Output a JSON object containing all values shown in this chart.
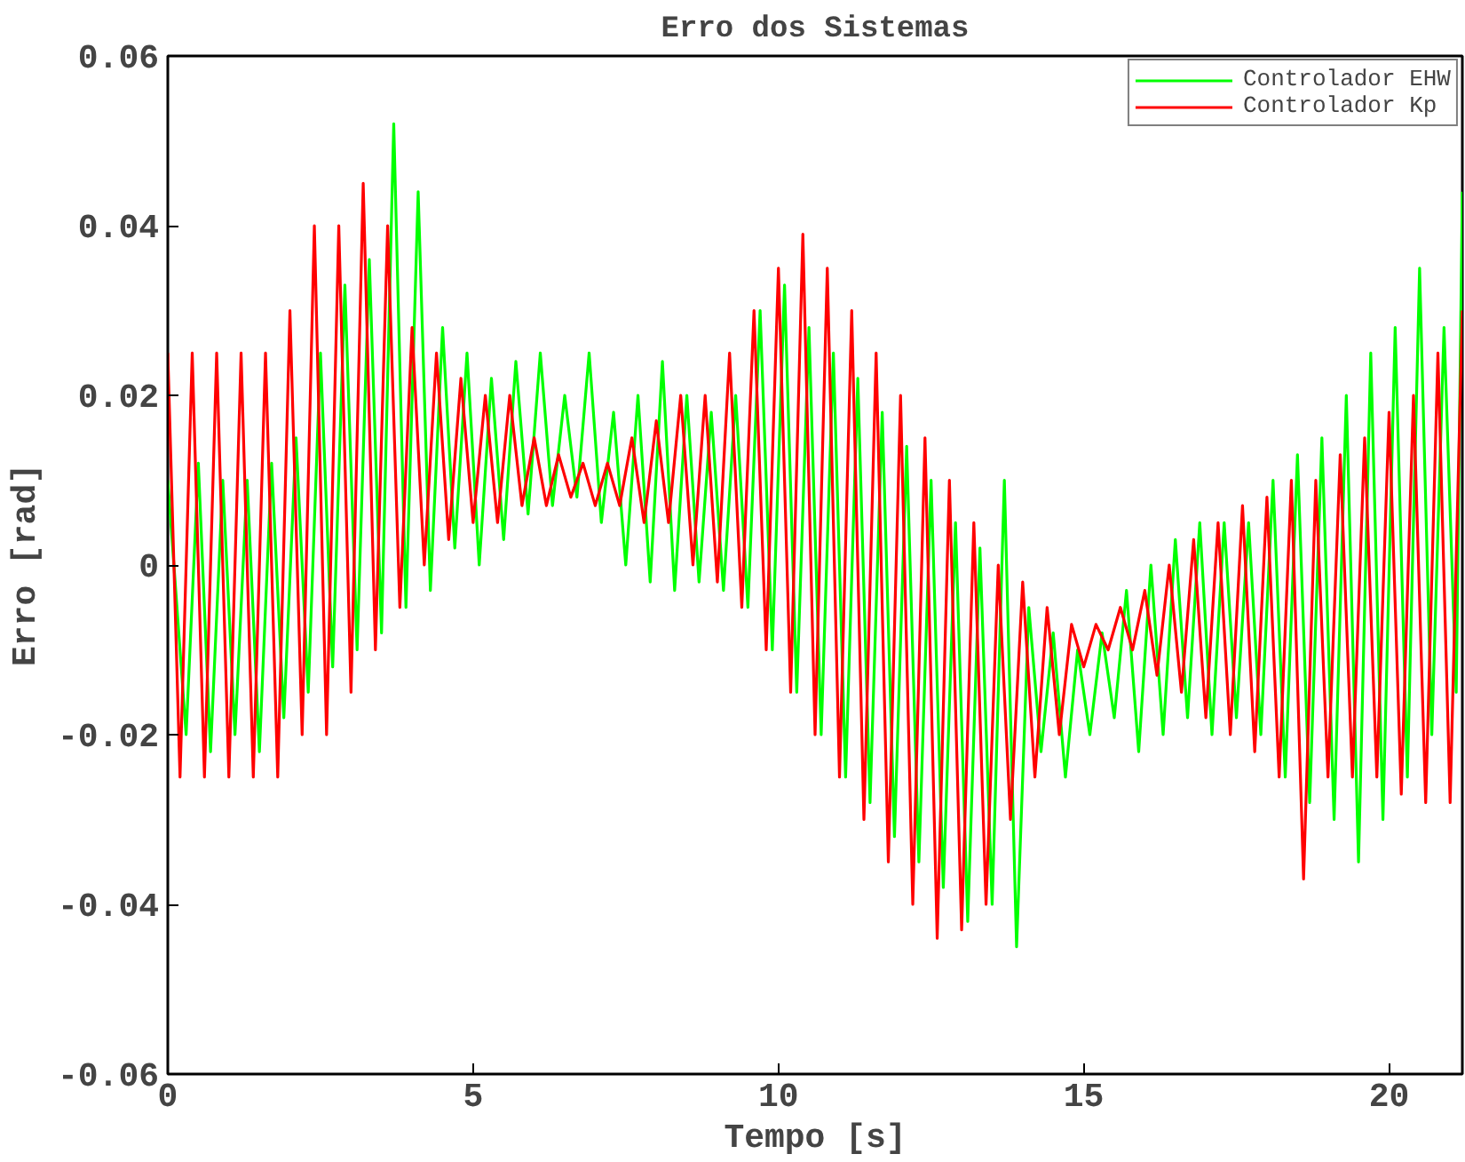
{
  "chart_data": {
    "type": "line",
    "title": "Erro dos Sistemas",
    "xlabel": "Tempo [s]",
    "ylabel": "Erro [rad]",
    "xlim": [
      0,
      21.2
    ],
    "ylim": [
      -0.06,
      0.06
    ],
    "xticks": [
      0,
      5,
      10,
      15,
      20
    ],
    "yticks": [
      -0.06,
      -0.04,
      -0.02,
      0,
      0.02,
      0.04,
      0.06
    ],
    "grid": false,
    "legend": "top right",
    "marker": "none",
    "line_style": "solid",
    "x": [
      0,
      0.2,
      0.4,
      0.6,
      0.8,
      1,
      1.2,
      1.4,
      1.6,
      1.8,
      2,
      2.2,
      2.4,
      2.6,
      2.8,
      3,
      3.2,
      3.4,
      3.6,
      3.8,
      4,
      4.2,
      4.4,
      4.6,
      4.8,
      5,
      5.2,
      5.4,
      5.6,
      5.8,
      6,
      6.2,
      6.4,
      6.6,
      6.8,
      7,
      7.2,
      7.4,
      7.6,
      7.8,
      8,
      8.2,
      8.4,
      8.6,
      8.8,
      9,
      9.2,
      9.4,
      9.6,
      9.8,
      10,
      10.2,
      10.4,
      10.6,
      10.8,
      11,
      11.2,
      11.4,
      11.6,
      11.8,
      12,
      12.2,
      12.4,
      12.6,
      12.8,
      13,
      13.2,
      13.4,
      13.6,
      13.8,
      14,
      14.2,
      14.4,
      14.6,
      14.8,
      15,
      15.2,
      15.4,
      15.6,
      15.8,
      16,
      16.2,
      16.4,
      16.6,
      16.8,
      17,
      17.2,
      17.4,
      17.6,
      17.8,
      18,
      18.2,
      18.4,
      18.6,
      18.8,
      19,
      19.2,
      19.4,
      19.6,
      19.8,
      20,
      20.2,
      20.4,
      20.6,
      20.8,
      21,
      21.2
    ],
    "series": [
      {
        "name": "Controlador EHW",
        "color": "#00ff00",
        "x": [
          0,
          0.3,
          0.5,
          0.7,
          0.9,
          1.1,
          1.3,
          1.5,
          1.7,
          1.9,
          2.1,
          2.3,
          2.5,
          2.7,
          2.9,
          3.1,
          3.3,
          3.5,
          3.7,
          3.9,
          4.1,
          4.3,
          4.5,
          4.7,
          4.9,
          5.1,
          5.3,
          5.5,
          5.7,
          5.9,
          6.1,
          6.3,
          6.5,
          6.7,
          6.9,
          7.1,
          7.3,
          7.5,
          7.7,
          7.9,
          8.1,
          8.3,
          8.5,
          8.7,
          8.9,
          9.1,
          9.3,
          9.5,
          9.7,
          9.9,
          10.1,
          10.3,
          10.5,
          10.7,
          10.9,
          11.1,
          11.3,
          11.5,
          11.7,
          11.9,
          12.1,
          12.3,
          12.5,
          12.7,
          12.9,
          13.1,
          13.3,
          13.5,
          13.7,
          13.9,
          14.1,
          14.3,
          14.5,
          14.7,
          14.9,
          15.1,
          15.3,
          15.5,
          15.7,
          15.9,
          16.1,
          16.3,
          16.5,
          16.7,
          16.9,
          17.1,
          17.3,
          17.5,
          17.7,
          17.9,
          18.1,
          18.3,
          18.5,
          18.7,
          18.9,
          19.1,
          19.3,
          19.5,
          19.7,
          19.9,
          20.1,
          20.3,
          20.5,
          20.7,
          20.9,
          21.1,
          21.2
        ],
        "values": [
          0.01,
          -0.02,
          0.012,
          -0.022,
          0.01,
          -0.02,
          0.01,
          -0.022,
          0.012,
          -0.018,
          0.015,
          -0.015,
          0.025,
          -0.012,
          0.033,
          -0.01,
          0.036,
          -0.008,
          0.052,
          -0.005,
          0.044,
          -0.003,
          0.028,
          0.002,
          0.025,
          0,
          0.022,
          0.003,
          0.024,
          0.006,
          0.025,
          0.007,
          0.02,
          0.008,
          0.025,
          0.005,
          0.018,
          0,
          0.02,
          -0.002,
          0.024,
          -0.003,
          0.02,
          -0.002,
          0.018,
          -0.003,
          0.02,
          -0.005,
          0.03,
          -0.01,
          0.033,
          -0.015,
          0.028,
          -0.02,
          0.025,
          -0.025,
          0.022,
          -0.028,
          0.018,
          -0.032,
          0.014,
          -0.035,
          0.01,
          -0.038,
          0.005,
          -0.042,
          0.002,
          -0.04,
          0.01,
          -0.045,
          -0.005,
          -0.022,
          -0.008,
          -0.025,
          -0.01,
          -0.02,
          -0.008,
          -0.018,
          -0.003,
          -0.022,
          0,
          -0.02,
          0.003,
          -0.018,
          0.005,
          -0.02,
          0.005,
          -0.018,
          0.005,
          -0.02,
          0.01,
          -0.025,
          0.013,
          -0.028,
          0.015,
          -0.03,
          0.02,
          -0.035,
          0.025,
          -0.03,
          0.028,
          -0.025,
          0.035,
          -0.02,
          0.028,
          -0.015,
          0.044
        ]
      },
      {
        "name": "Controlador Kp",
        "color": "#ff0000",
        "values": [
          0.025,
          -0.025,
          0.025,
          -0.025,
          0.025,
          -0.025,
          0.025,
          -0.025,
          0.025,
          -0.025,
          0.03,
          -0.02,
          0.04,
          -0.02,
          0.04,
          -0.015,
          0.045,
          -0.01,
          0.04,
          -0.005,
          0.028,
          0,
          0.025,
          0.003,
          0.022,
          0.005,
          0.02,
          0.005,
          0.02,
          0.007,
          0.015,
          0.007,
          0.013,
          0.008,
          0.012,
          0.007,
          0.012,
          0.007,
          0.015,
          0.005,
          0.017,
          0.005,
          0.02,
          0,
          0.02,
          -0.002,
          0.025,
          -0.005,
          0.03,
          -0.01,
          0.035,
          -0.015,
          0.039,
          -0.02,
          0.035,
          -0.025,
          0.03,
          -0.03,
          0.025,
          -0.035,
          0.02,
          -0.04,
          0.015,
          -0.044,
          0.01,
          -0.043,
          0.005,
          -0.04,
          0,
          -0.03,
          -0.002,
          -0.025,
          -0.005,
          -0.02,
          -0.007,
          -0.012,
          -0.007,
          -0.01,
          -0.005,
          -0.01,
          -0.003,
          -0.013,
          0,
          -0.015,
          0.003,
          -0.018,
          0.005,
          -0.02,
          0.007,
          -0.022,
          0.008,
          -0.025,
          0.01,
          -0.037,
          0.01,
          -0.025,
          0.013,
          -0.025,
          0.015,
          -0.025,
          0.018,
          -0.027,
          0.02,
          -0.028,
          0.025,
          -0.028,
          0.03
        ]
      }
    ]
  }
}
